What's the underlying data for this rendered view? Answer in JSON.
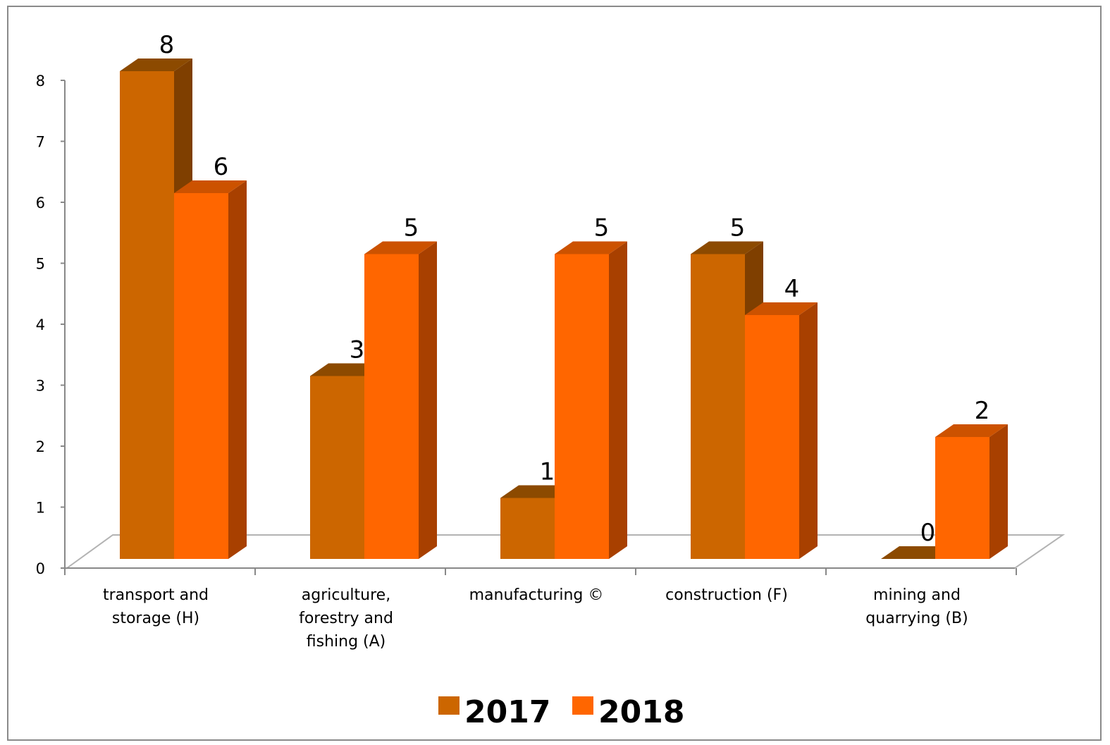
{
  "chart_data": {
    "type": "bar",
    "style": "3d-clustered-column",
    "categories": [
      [
        "transport and",
        "storage (H)"
      ],
      [
        "agriculture,",
        "forestry and",
        "fishing (A)"
      ],
      [
        "manufacturing ©"
      ],
      [
        "construction (F)"
      ],
      [
        "mining and",
        "quarrying (B)"
      ]
    ],
    "series": [
      {
        "name": "2017",
        "values": [
          8,
          3,
          1,
          5,
          0
        ],
        "color": "#cc6600",
        "side_color": "#7f3f00",
        "top_color": "#8c4a00"
      },
      {
        "name": "2018",
        "values": [
          6,
          5,
          5,
          4,
          2
        ],
        "color": "#ff6600",
        "side_color": "#a84000",
        "top_color": "#cc5200"
      }
    ],
    "yticks": [
      "0",
      "1",
      "2",
      "3",
      "4",
      "5",
      "6",
      "7",
      "8"
    ],
    "ylim": [
      0,
      8
    ],
    "grid": false,
    "legend_position": "bottom",
    "title": "",
    "xlabel": "",
    "ylabel": ""
  }
}
